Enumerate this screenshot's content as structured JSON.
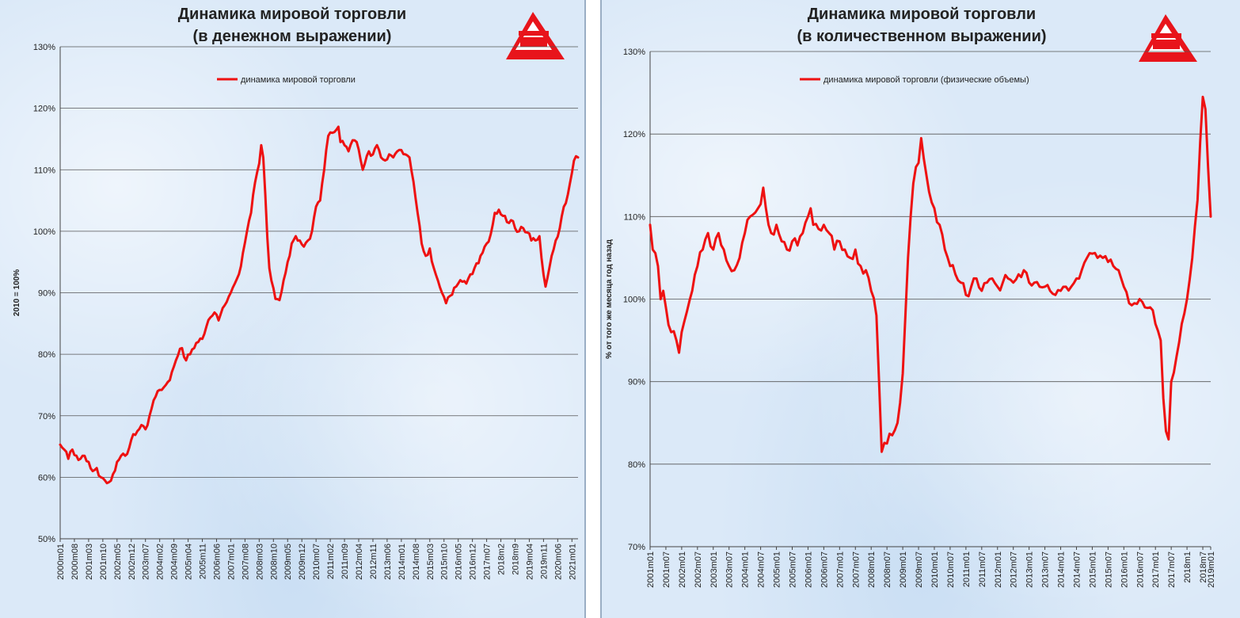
{
  "chart_data": [
    {
      "type": "line",
      "title": "Динамика мировой торговли",
      "subtitle": "(в денежном выражении)",
      "ylabel": "2010 = 100%",
      "xlabel": "",
      "ylim": [
        50,
        130
      ],
      "yticks": [
        "50%",
        "60%",
        "70%",
        "80%",
        "90%",
        "100%",
        "110%",
        "120%",
        "130%"
      ],
      "legend": "top-center",
      "grid": true,
      "color": "#ee1111",
      "x_start": "2000m01",
      "x_tick_labels": [
        "2000m01",
        "2000m08",
        "2001m03",
        "2001m10",
        "2002m05",
        "2002m12",
        "2003m07",
        "2004m02",
        "2004m09",
        "2005m04",
        "2005m11",
        "2006m06",
        "2007m01",
        "2007m08",
        "2008m03",
        "2008m10",
        "2009m05",
        "2009m12",
        "2010m07",
        "2011m02",
        "2011m09",
        "2012m04",
        "2012m11",
        "2013m06",
        "2014m01",
        "2014m08",
        "2015m03",
        "2015m10",
        "2016m05",
        "2016m12",
        "2017m07",
        "2018m2",
        "2018m9",
        "2019m04",
        "2019m11",
        "2020m06",
        "2021m01"
      ],
      "series": [
        {
          "name": "динамика мировой торговли",
          "anchors": [
            [
              0,
              65.3
            ],
            [
              2,
              64.5
            ],
            [
              4,
              63
            ],
            [
              6,
              64.5
            ],
            [
              8,
              63.5
            ],
            [
              10,
              63
            ],
            [
              12,
              63.5
            ],
            [
              14,
              62.5
            ],
            [
              16,
              61
            ],
            [
              18,
              61.5
            ],
            [
              20,
              60
            ],
            [
              22,
              59.5
            ],
            [
              24,
              59.2
            ],
            [
              26,
              60.5
            ],
            [
              28,
              62.5
            ],
            [
              30,
              63.5
            ],
            [
              32,
              63.5
            ],
            [
              34,
              64.8
            ],
            [
              36,
              67
            ],
            [
              38,
              67.5
            ],
            [
              40,
              68.5
            ],
            [
              42,
              67.8
            ],
            [
              44,
              70
            ],
            [
              46,
              72.5
            ],
            [
              48,
              74
            ],
            [
              50,
              74.2
            ],
            [
              52,
              75
            ],
            [
              54,
              75.8
            ],
            [
              56,
              78
            ],
            [
              58,
              79.8
            ],
            [
              60,
              81
            ],
            [
              62,
              79
            ],
            [
              64,
              80
            ],
            [
              66,
              81
            ],
            [
              68,
              82
            ],
            [
              70,
              82.5
            ],
            [
              72,
              84.5
            ],
            [
              74,
              86
            ],
            [
              76,
              86.8
            ],
            [
              78,
              85.5
            ],
            [
              80,
              87.5
            ],
            [
              82,
              88.5
            ],
            [
              84,
              90
            ],
            [
              86,
              91.5
            ],
            [
              88,
              93
            ],
            [
              90,
              96.5
            ],
            [
              92,
              100
            ],
            [
              94,
              103
            ],
            [
              96,
              108
            ],
            [
              98,
              111
            ],
            [
              99,
              114
            ],
            [
              100,
              112
            ],
            [
              101,
              106
            ],
            [
              102,
              99
            ],
            [
              103,
              94
            ],
            [
              104,
              92
            ],
            [
              106,
              89
            ],
            [
              108,
              88.8
            ],
            [
              110,
              92
            ],
            [
              112,
              95
            ],
            [
              114,
              98
            ],
            [
              116,
              99.2
            ],
            [
              118,
              98.5
            ],
            [
              120,
              97.5
            ],
            [
              122,
              98.5
            ],
            [
              124,
              100
            ],
            [
              126,
              104
            ],
            [
              128,
              105
            ],
            [
              130,
              110
            ],
            [
              132,
              115.5
            ],
            [
              134,
              116
            ],
            [
              136,
              116.5
            ],
            [
              137,
              117
            ],
            [
              138,
              114.5
            ],
            [
              140,
              114
            ],
            [
              142,
              113
            ],
            [
              144,
              114.8
            ],
            [
              146,
              114.5
            ],
            [
              148,
              111.5
            ],
            [
              149,
              110
            ],
            [
              150,
              111
            ],
            [
              152,
              113
            ],
            [
              154,
              112.5
            ],
            [
              156,
              114
            ],
            [
              158,
              112
            ],
            [
              160,
              111.5
            ],
            [
              162,
              112.5
            ],
            [
              164,
              112
            ],
            [
              166,
              113
            ],
            [
              168,
              113.2
            ],
            [
              170,
              112.5
            ],
            [
              172,
              112
            ],
            [
              174,
              108
            ],
            [
              176,
              103
            ],
            [
              178,
              98
            ],
            [
              180,
              96
            ],
            [
              182,
              97.2
            ],
            [
              184,
              94
            ],
            [
              186,
              92
            ],
            [
              188,
              90
            ],
            [
              190,
              88.3
            ],
            [
              192,
              89.5
            ],
            [
              194,
              90.8
            ],
            [
              196,
              91.5
            ],
            [
              198,
              91.8
            ],
            [
              200,
              91.5
            ],
            [
              202,
              93
            ],
            [
              204,
              94
            ],
            [
              206,
              94.8
            ],
            [
              208,
              96.5
            ],
            [
              210,
              98
            ],
            [
              212,
              99.5
            ],
            [
              214,
              103
            ],
            [
              216,
              103.5
            ],
            [
              218,
              102.5
            ],
            [
              220,
              101.5
            ],
            [
              222,
              101.8
            ],
            [
              224,
              100.5
            ],
            [
              226,
              100
            ],
            [
              228,
              100.5
            ],
            [
              230,
              99.8
            ],
            [
              232,
              98.5
            ],
            [
              234,
              98.5
            ],
            [
              236,
              99.2
            ],
            [
              238,
              93
            ],
            [
              239,
              91
            ],
            [
              240,
              92.5
            ],
            [
              242,
              96
            ],
            [
              244,
              98.5
            ],
            [
              246,
              100.5
            ],
            [
              248,
              104
            ],
            [
              250,
              106
            ],
            [
              252,
              109.5
            ],
            [
              253,
              111.5
            ],
            [
              254,
              112.2
            ],
            [
              255,
              112
            ]
          ]
        }
      ]
    },
    {
      "type": "line",
      "title": "Динамика мировой торговли",
      "subtitle": "(в количественном выражении)",
      "ylabel": "% от того же месяца год назад",
      "xlabel": "",
      "ylim": [
        70,
        130
      ],
      "yticks": [
        "70%",
        "80%",
        "90%",
        "100%",
        "110%",
        "120%",
        "130%"
      ],
      "legend": "top-center",
      "grid": true,
      "color": "#ee1111",
      "x_start": "2001m01",
      "x_tick_labels": [
        "2001m01",
        "2001m07",
        "2002m01",
        "2002m07",
        "2003m01",
        "2003m07",
        "2004m01",
        "2004m07",
        "2005m01",
        "2005m07",
        "2006m01",
        "2006m07",
        "2007m01",
        "2007m07",
        "2008m01",
        "2008m07",
        "2009m01",
        "2009m07",
        "2010m01",
        "2010m07",
        "2011m01",
        "2011m07",
        "2012m01",
        "2012m07",
        "2013m01",
        "2013m07",
        "2014m01",
        "2014m07",
        "2015m01",
        "2015m07",
        "2016m01",
        "2016m07",
        "2017m01",
        "2017m07",
        "2018m1",
        "2018m7",
        "2019m01",
        "2019m07",
        "2020m01",
        "2020m07",
        "2021m01",
        "2021m07"
      ],
      "series": [
        {
          "name": "динамика мировой торговли (физические объемы)",
          "anchors": [
            [
              0,
              109
            ],
            [
              1,
              106
            ],
            [
              3,
              104
            ],
            [
              4,
              100
            ],
            [
              5,
              101
            ],
            [
              6,
              99
            ],
            [
              8,
              96
            ],
            [
              10,
              95
            ],
            [
              11,
              93.5
            ],
            [
              12,
              96
            ],
            [
              14,
              98.5
            ],
            [
              16,
              101
            ],
            [
              18,
              104
            ],
            [
              20,
              106
            ],
            [
              22,
              108
            ],
            [
              24,
              106
            ],
            [
              26,
              108
            ],
            [
              28,
              106
            ],
            [
              30,
              104
            ],
            [
              32,
              103.5
            ],
            [
              34,
              105
            ],
            [
              36,
              108
            ],
            [
              38,
              110
            ],
            [
              40,
              110.5
            ],
            [
              42,
              111.5
            ],
            [
              43,
              113.5
            ],
            [
              44,
              111
            ],
            [
              46,
              108
            ],
            [
              48,
              109
            ],
            [
              50,
              107
            ],
            [
              52,
              106
            ],
            [
              54,
              107
            ],
            [
              56,
              106.5
            ],
            [
              58,
              108
            ],
            [
              60,
              110
            ],
            [
              61,
              111
            ],
            [
              62,
              109
            ],
            [
              64,
              108.5
            ],
            [
              66,
              109
            ],
            [
              68,
              108
            ],
            [
              70,
              106
            ],
            [
              72,
              107
            ],
            [
              74,
              106
            ],
            [
              76,
              105
            ],
            [
              78,
              106
            ],
            [
              80,
              104
            ],
            [
              82,
              103.5
            ],
            [
              84,
              101
            ],
            [
              86,
              98
            ],
            [
              87,
              90
            ],
            [
              88,
              81.5
            ],
            [
              90,
              82.5
            ],
            [
              92,
              83.5
            ],
            [
              94,
              85
            ],
            [
              96,
              91
            ],
            [
              98,
              105
            ],
            [
              99,
              110
            ],
            [
              100,
              114
            ],
            [
              101,
              116
            ],
            [
              102,
              116.5
            ],
            [
              103,
              119.5
            ],
            [
              104,
              117
            ],
            [
              105,
              115
            ],
            [
              106,
              113
            ],
            [
              108,
              111
            ],
            [
              110,
              109
            ],
            [
              112,
              106
            ],
            [
              114,
              104
            ],
            [
              116,
              103
            ],
            [
              118,
              102
            ],
            [
              120,
              100.5
            ],
            [
              122,
              101.5
            ],
            [
              124,
              102.5
            ],
            [
              126,
              101
            ],
            [
              128,
              102
            ],
            [
              130,
              102.5
            ],
            [
              132,
              101.5
            ],
            [
              134,
              102
            ],
            [
              136,
              102.5
            ],
            [
              138,
              102
            ],
            [
              140,
              103
            ],
            [
              142,
              103.5
            ],
            [
              144,
              102
            ],
            [
              146,
              102
            ],
            [
              148,
              101.5
            ],
            [
              150,
              101.5
            ],
            [
              152,
              101
            ],
            [
              154,
              100.5
            ],
            [
              156,
              101
            ],
            [
              158,
              101.5
            ],
            [
              160,
              101.5
            ],
            [
              162,
              102.5
            ],
            [
              164,
              103.5
            ],
            [
              166,
              105
            ],
            [
              168,
              105.5
            ],
            [
              170,
              105
            ],
            [
              172,
              105
            ],
            [
              174,
              104.5
            ],
            [
              176,
              104
            ],
            [
              178,
              103.5
            ],
            [
              180,
              101.5
            ],
            [
              182,
              99.5
            ],
            [
              184,
              99.5
            ],
            [
              186,
              100
            ],
            [
              188,
              99
            ],
            [
              190,
              99
            ],
            [
              192,
              97
            ],
            [
              194,
              95
            ],
            [
              195,
              88
            ],
            [
              196,
              84
            ],
            [
              197,
              83
            ],
            [
              198,
              90
            ],
            [
              200,
              93
            ],
            [
              202,
              97
            ],
            [
              204,
              100
            ],
            [
              206,
              105
            ],
            [
              208,
              112
            ],
            [
              209,
              119
            ],
            [
              210,
              124.5
            ],
            [
              211,
              123
            ],
            [
              212,
              116
            ],
            [
              213,
              110
            ]
          ]
        }
      ]
    }
  ]
}
